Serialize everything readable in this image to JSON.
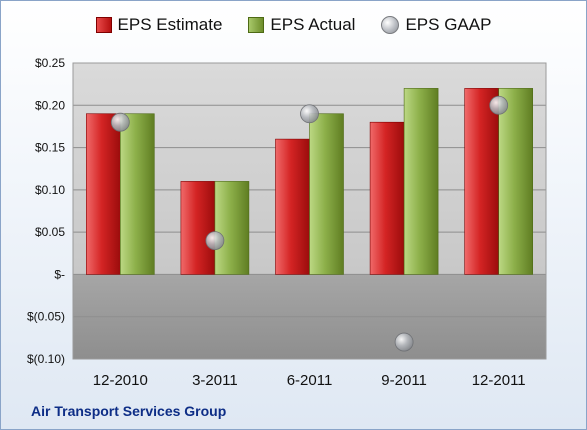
{
  "legend": {
    "estimate": "EPS Estimate",
    "actual": "EPS Actual",
    "gaap": "EPS GAAP"
  },
  "company": "Air Transport Services Group",
  "colors": {
    "estimate": "#d42424",
    "actual": "#8db04a",
    "gaap": "#a9acb1",
    "company_text": "#0d2d86"
  },
  "chart_data": {
    "type": "bar",
    "categories": [
      "12-2010",
      "3-2011",
      "6-2011",
      "9-2011",
      "12-2011"
    ],
    "series": [
      {
        "name": "EPS Estimate",
        "type": "bar",
        "values": [
          0.19,
          0.11,
          0.16,
          0.18,
          0.22
        ]
      },
      {
        "name": "EPS Actual",
        "type": "bar",
        "values": [
          0.19,
          0.11,
          0.19,
          0.22,
          0.22
        ]
      },
      {
        "name": "EPS GAAP",
        "type": "scatter",
        "values": [
          0.18,
          0.04,
          0.19,
          -0.08,
          0.2
        ]
      }
    ],
    "ylim": [
      -0.1,
      0.25
    ],
    "yticks": [
      0.25,
      0.2,
      0.15,
      0.1,
      0.05,
      0.0,
      -0.05,
      -0.1
    ],
    "ytick_labels": [
      "$0.25",
      "$0.20",
      "$0.15",
      "$0.10",
      "$0.05",
      "$-",
      "$(0.05)",
      "$(0.10)"
    ],
    "grid": true,
    "legend_position": "top"
  }
}
